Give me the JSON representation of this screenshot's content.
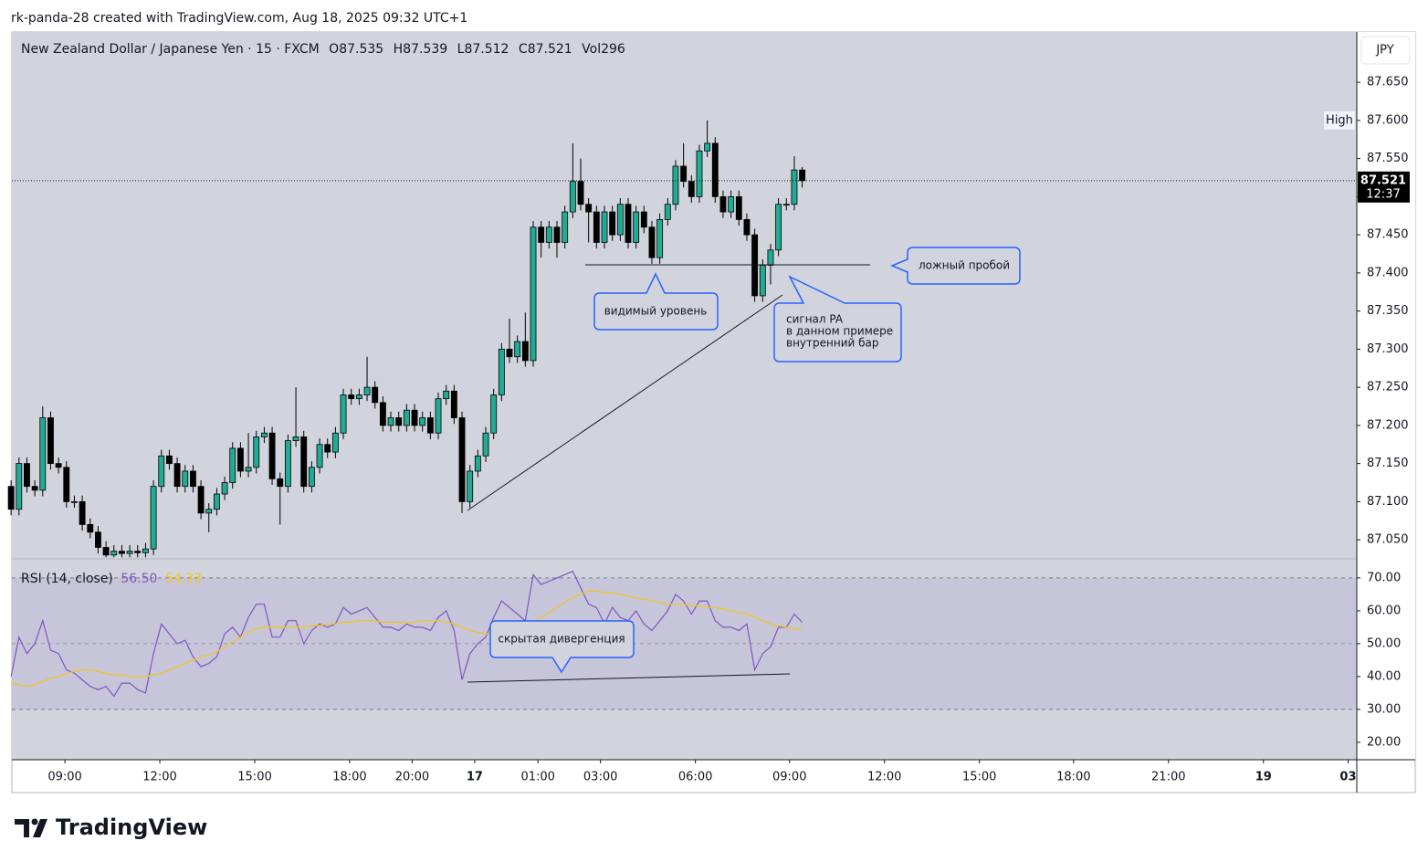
{
  "header": {
    "credit": "rk-panda-28 created with TradingView.com, Aug 18, 2025 09:32 UTC+1"
  },
  "footer": {
    "brand": "TradingView"
  },
  "chart_data": [
    {
      "type": "candlestick",
      "title": "New Zealand Dollar / Japanese Yen · 15 · FXCM",
      "legend_items": [
        {
          "label": "O",
          "value": 87.535
        },
        {
          "label": "H",
          "value": 87.539
        },
        {
          "label": "L",
          "value": 87.512
        },
        {
          "label": "C",
          "value": 87.521
        },
        {
          "label": "Vol",
          "value": 296
        }
      ],
      "currency": "JPY",
      "up_color": "#22ab94",
      "down_color": "#000000",
      "open": [
        87.12,
        87.09,
        87.15,
        87.12,
        87.115,
        87.21,
        87.15,
        87.145,
        87.1,
        87.1,
        87.07,
        87.06,
        87.04,
        87.03,
        87.035,
        87.032,
        87.035,
        87.033,
        87.038,
        87.12,
        87.16,
        87.15,
        87.12,
        87.14,
        87.12,
        87.085,
        87.09,
        87.11,
        87.125,
        87.17,
        87.14,
        87.145,
        87.185,
        87.19,
        87.13,
        87.12,
        87.18,
        87.185,
        87.12,
        87.145,
        87.175,
        87.165,
        87.19,
        87.24,
        87.235,
        87.24,
        87.25,
        87.23,
        87.2,
        87.21,
        87.2,
        87.22,
        87.2,
        87.21,
        87.19,
        87.235,
        87.245,
        87.21,
        87.1,
        87.14,
        87.16,
        87.19,
        87.24,
        87.3,
        87.29,
        87.31,
        87.285,
        87.46,
        87.44,
        87.46,
        87.44,
        87.48,
        87.52,
        87.49,
        87.48,
        87.44,
        87.48,
        87.45,
        87.49,
        87.44,
        87.48,
        87.46,
        87.42,
        87.47,
        87.49,
        87.54,
        87.52,
        87.5,
        87.56,
        87.57,
        87.5,
        87.48,
        87.5,
        87.47,
        87.45,
        87.37,
        87.41,
        87.43,
        87.49,
        87.49,
        87.535
      ],
      "high": [
        87.128,
        87.158,
        87.158,
        87.128,
        87.225,
        87.218,
        87.158,
        87.153,
        87.108,
        87.108,
        87.078,
        87.068,
        87.048,
        87.043,
        87.043,
        87.043,
        87.043,
        87.046,
        87.128,
        87.168,
        87.168,
        87.158,
        87.148,
        87.148,
        87.128,
        87.098,
        87.118,
        87.133,
        87.178,
        87.178,
        87.19,
        87.193,
        87.198,
        87.198,
        87.138,
        87.188,
        87.25,
        87.193,
        87.153,
        87.183,
        87.183,
        87.198,
        87.248,
        87.248,
        87.248,
        87.29,
        87.258,
        87.238,
        87.218,
        87.218,
        87.228,
        87.228,
        87.218,
        87.218,
        87.243,
        87.253,
        87.253,
        87.218,
        87.148,
        87.168,
        87.198,
        87.248,
        87.308,
        87.34,
        87.318,
        87.348,
        87.468,
        87.468,
        87.468,
        87.468,
        87.488,
        87.57,
        87.55,
        87.498,
        87.488,
        87.488,
        87.488,
        87.498,
        87.498,
        87.488,
        87.488,
        87.468,
        87.478,
        87.498,
        87.548,
        87.57,
        87.528,
        87.568,
        87.6,
        87.578,
        87.508,
        87.508,
        87.508,
        87.478,
        87.458,
        87.418,
        87.438,
        87.498,
        87.498,
        87.553,
        87.539
      ],
      "low": [
        87.082,
        87.082,
        87.112,
        87.107,
        87.107,
        87.142,
        87.137,
        87.092,
        87.092,
        87.062,
        87.052,
        87.032,
        87.027,
        87.027,
        87.027,
        87.027,
        87.027,
        87.027,
        87.03,
        87.112,
        87.142,
        87.112,
        87.112,
        87.112,
        87.077,
        87.06,
        87.082,
        87.102,
        87.117,
        87.132,
        87.132,
        87.137,
        87.177,
        87.122,
        87.07,
        87.112,
        87.172,
        87.112,
        87.112,
        87.137,
        87.157,
        87.157,
        87.182,
        87.227,
        87.227,
        87.232,
        87.222,
        87.192,
        87.192,
        87.192,
        87.192,
        87.192,
        87.192,
        87.182,
        87.182,
        87.227,
        87.202,
        87.085,
        87.092,
        87.132,
        87.152,
        87.182,
        87.232,
        87.282,
        87.282,
        87.277,
        87.277,
        87.42,
        87.432,
        87.42,
        87.432,
        87.472,
        87.482,
        87.44,
        87.432,
        87.432,
        87.442,
        87.442,
        87.432,
        87.432,
        87.452,
        87.412,
        87.412,
        87.462,
        87.482,
        87.512,
        87.492,
        87.492,
        87.552,
        87.492,
        87.472,
        87.472,
        87.462,
        87.442,
        87.362,
        87.362,
        87.385,
        87.422,
        87.482,
        87.482,
        87.512
      ],
      "close": [
        87.09,
        87.15,
        87.12,
        87.115,
        87.21,
        87.15,
        87.145,
        87.1,
        87.1,
        87.07,
        87.06,
        87.04,
        87.03,
        87.035,
        87.032,
        87.035,
        87.033,
        87.038,
        87.12,
        87.16,
        87.15,
        87.12,
        87.14,
        87.12,
        87.085,
        87.09,
        87.11,
        87.125,
        87.17,
        87.14,
        87.145,
        87.185,
        87.19,
        87.13,
        87.12,
        87.18,
        87.185,
        87.12,
        87.145,
        87.175,
        87.165,
        87.19,
        87.24,
        87.235,
        87.24,
        87.25,
        87.23,
        87.2,
        87.21,
        87.2,
        87.22,
        87.2,
        87.21,
        87.19,
        87.235,
        87.245,
        87.21,
        87.1,
        87.14,
        87.16,
        87.19,
        87.24,
        87.3,
        87.29,
        87.31,
        87.285,
        87.46,
        87.44,
        87.46,
        87.44,
        87.48,
        87.52,
        87.49,
        87.48,
        87.44,
        87.48,
        87.45,
        87.49,
        87.44,
        87.48,
        87.46,
        87.42,
        87.47,
        87.49,
        87.54,
        87.52,
        87.5,
        87.56,
        87.57,
        87.5,
        87.48,
        87.5,
        87.47,
        87.45,
        87.37,
        87.41,
        87.43,
        87.49,
        87.49,
        87.535,
        87.521
      ],
      "ylim": [
        87.025,
        87.716
      ],
      "yticks": [
        {
          "value": 87.05,
          "label": "87.050"
        },
        {
          "value": 87.1,
          "label": "87.100"
        },
        {
          "value": 87.15,
          "label": "87.150"
        },
        {
          "value": 87.2,
          "label": "87.200"
        },
        {
          "value": 87.25,
          "label": "87.250"
        },
        {
          "value": 87.3,
          "label": "87.300"
        },
        {
          "value": 87.35,
          "label": "87.350"
        },
        {
          "value": 87.4,
          "label": "87.400"
        },
        {
          "value": 87.45,
          "label": "87.450"
        },
        {
          "value": 87.5,
          "label": "87.500"
        },
        {
          "value": 87.55,
          "label": "87.550"
        },
        {
          "value": 87.6,
          "label": "87.600"
        },
        {
          "value": 87.65,
          "label": "87.650"
        }
      ],
      "xlim": [
        0.1,
        170.1
      ],
      "xticks": [
        {
          "value": 6.8,
          "label": "09:00"
        },
        {
          "value": 18.8,
          "label": "12:00"
        },
        {
          "value": 30.8,
          "label": "15:00"
        },
        {
          "value": 42.8,
          "label": "18:00"
        },
        {
          "value": 50.7,
          "label": "20:00"
        },
        {
          "value": 58.6,
          "label": "17"
        },
        {
          "value": 66.6,
          "label": "01:00"
        },
        {
          "value": 74.5,
          "label": "03:00"
        },
        {
          "value": 86.5,
          "label": "06:00"
        },
        {
          "value": 98.4,
          "label": "09:00"
        },
        {
          "value": 110.4,
          "label": "12:00"
        },
        {
          "value": 122.4,
          "label": "15:00"
        },
        {
          "value": 134.3,
          "label": "18:00"
        },
        {
          "value": 146.3,
          "label": "21:00"
        },
        {
          "value": 158.3,
          "label": "19"
        },
        {
          "value": 169.0,
          "label": "03"
        }
      ],
      "last_price": 87.521,
      "countdown": "12:37",
      "high_marker": {
        "label": "High",
        "value": 87.6
      },
      "annotations": {
        "level": "видимый уровень",
        "false_break": "ложный пробой",
        "signal": [
          "сигнал PA",
          "в данном примере",
          "внутренний бар"
        ]
      }
    },
    {
      "type": "line",
      "title": "RSI (14, close)",
      "series": [
        {
          "color": "#7e57c2",
          "last_label": "56.50",
          "values": [
            40,
            52,
            47,
            50,
            57,
            48,
            47,
            42,
            41,
            39,
            37,
            36,
            37,
            34,
            38,
            38,
            36,
            35,
            47,
            56,
            53,
            50,
            51,
            46,
            43,
            44,
            46,
            53,
            55,
            52,
            58,
            62,
            62,
            52,
            52,
            57,
            57,
            50,
            54,
            56,
            55,
            56,
            61,
            59,
            60,
            61,
            58,
            55,
            55,
            54,
            56,
            55,
            55,
            54,
            58,
            60,
            54,
            39,
            47,
            50,
            52,
            58,
            63,
            61,
            59,
            57,
            71,
            68,
            69,
            70,
            71,
            72,
            67,
            62,
            61,
            56,
            61,
            58,
            57,
            60,
            56,
            54,
            57,
            60,
            65,
            63,
            59,
            63,
            63,
            57,
            55,
            55,
            54,
            56,
            42,
            47,
            49,
            55,
            55,
            59,
            56.5
          ]
        },
        {
          "color": "#f5c518",
          "last_label": "54.33",
          "values": [
            38,
            37.5,
            37,
            37.5,
            38.5,
            39.5,
            40,
            41,
            41.5,
            42,
            42,
            41.5,
            41,
            40.5,
            40.5,
            40,
            40,
            40,
            40.5,
            41,
            42,
            43,
            44,
            45,
            46,
            46.5,
            47.5,
            49,
            50.5,
            52,
            53.5,
            54.5,
            55,
            55,
            55,
            55,
            55,
            55,
            55.5,
            55.5,
            56,
            56,
            56.5,
            56.5,
            57,
            57,
            57,
            56.5,
            56.5,
            56.5,
            56.5,
            56.5,
            57,
            57,
            57,
            56.5,
            56,
            55,
            54,
            53.5,
            53,
            53,
            54,
            54.5,
            55,
            55.5,
            56.5,
            58,
            59.5,
            61,
            62.5,
            64,
            65,
            66,
            66,
            65.5,
            65.5,
            65,
            64.5,
            64,
            63.5,
            63,
            62.5,
            62,
            62,
            62,
            61.5,
            61.5,
            61,
            61,
            60.5,
            60,
            59.5,
            59,
            58,
            57,
            56,
            55.5,
            55,
            54.5,
            54.33
          ]
        }
      ],
      "ylim": [
        14.7,
        75.8
      ],
      "yticks": [
        {
          "value": 20,
          "label": "20.00"
        },
        {
          "value": 30,
          "label": "30.00"
        },
        {
          "value": 40,
          "label": "40.00"
        },
        {
          "value": 50,
          "label": "50.00"
        },
        {
          "value": 60,
          "label": "60.00"
        },
        {
          "value": 70,
          "label": "70.00"
        }
      ],
      "bands": [
        30,
        70
      ],
      "midline": 50,
      "annotation": "скрытая дивергенция"
    }
  ]
}
